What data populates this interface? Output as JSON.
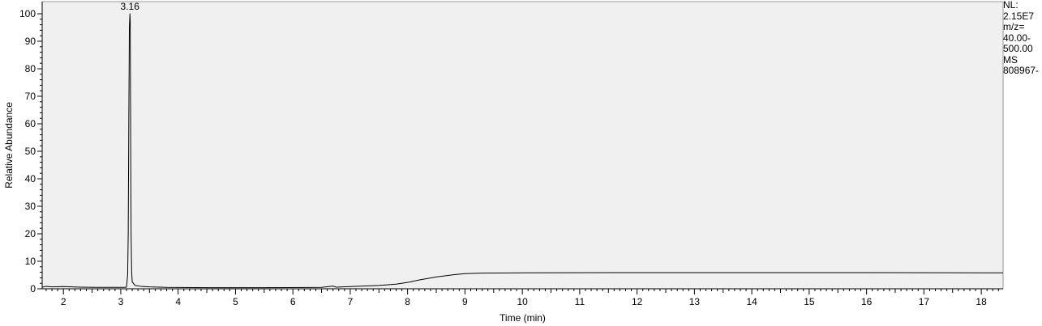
{
  "chart_data": {
    "type": "line",
    "xlabel": "Time (min)",
    "ylabel": "Relative Abundance",
    "xlim": [
      1.63,
      18.38
    ],
    "ylim": [
      0,
      100
    ],
    "x_ticks": [
      2,
      3,
      4,
      5,
      6,
      7,
      8,
      9,
      10,
      11,
      12,
      13,
      14,
      15,
      16,
      17,
      18
    ],
    "y_ticks": [
      0,
      10,
      20,
      30,
      40,
      50,
      60,
      70,
      80,
      90,
      100
    ],
    "grid": false,
    "background_color": "#f0f0f0",
    "line_color": "#000000",
    "peak_labels": [
      {
        "x": 3.16,
        "y": 100,
        "label": "3.16"
      }
    ],
    "series": [
      {
        "points": [
          [
            1.63,
            0.6
          ],
          [
            1.7,
            0.9
          ],
          [
            1.8,
            0.7
          ],
          [
            2.0,
            0.8
          ],
          [
            2.3,
            0.6
          ],
          [
            2.6,
            0.5
          ],
          [
            2.9,
            0.5
          ],
          [
            3.05,
            0.5
          ],
          [
            3.1,
            0.6
          ],
          [
            3.12,
            5.0
          ],
          [
            3.13,
            20.0
          ],
          [
            3.14,
            60.0
          ],
          [
            3.15,
            95.0
          ],
          [
            3.16,
            100.0
          ],
          [
            3.165,
            97.0
          ],
          [
            3.17,
            70.0
          ],
          [
            3.175,
            43.0
          ],
          [
            3.18,
            20.0
          ],
          [
            3.19,
            6.0
          ],
          [
            3.2,
            2.5
          ],
          [
            3.25,
            1.2
          ],
          [
            3.35,
            0.9
          ],
          [
            3.5,
            0.7
          ],
          [
            3.8,
            0.5
          ],
          [
            4.5,
            0.4
          ],
          [
            5.5,
            0.4
          ],
          [
            6.5,
            0.5
          ],
          [
            6.7,
            1.0
          ],
          [
            6.75,
            0.6
          ],
          [
            7.0,
            0.8
          ],
          [
            7.5,
            1.2
          ],
          [
            7.8,
            1.7
          ],
          [
            8.0,
            2.3
          ],
          [
            8.2,
            3.2
          ],
          [
            8.5,
            4.3
          ],
          [
            8.8,
            5.1
          ],
          [
            9.0,
            5.5
          ],
          [
            9.3,
            5.7
          ],
          [
            10.0,
            5.8
          ],
          [
            12.0,
            5.9
          ],
          [
            14.0,
            5.9
          ],
          [
            16.0,
            5.9
          ],
          [
            18.0,
            5.8
          ],
          [
            18.38,
            5.8
          ]
        ]
      }
    ]
  },
  "side_note": {
    "lines": [
      "NL:",
      "2.15E7",
      "m/z=",
      "40.00-",
      "500.00",
      "MS",
      "808967-"
    ]
  }
}
